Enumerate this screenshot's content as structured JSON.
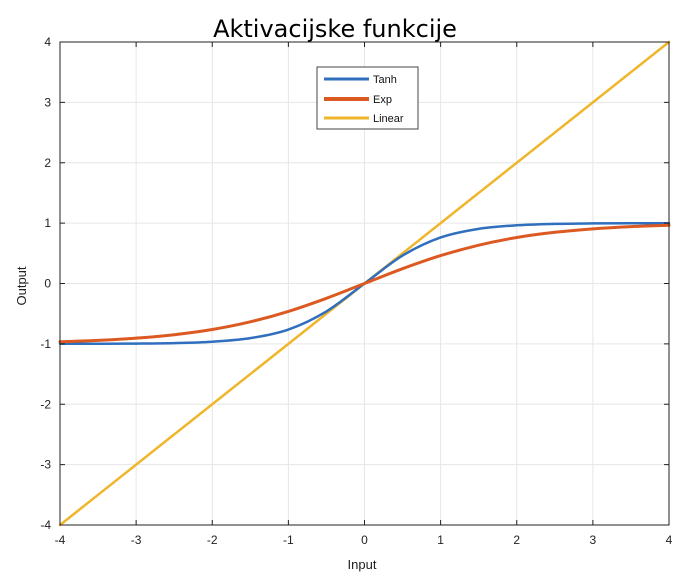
{
  "chart_data": {
    "type": "line",
    "title": "Aktivacijske funkcije",
    "xlabel": "Input",
    "ylabel": "Output",
    "xlim": [
      -4,
      4
    ],
    "ylim": [
      -4,
      4
    ],
    "xticks": [
      -4,
      -3,
      -2,
      -1,
      0,
      1,
      2,
      3,
      4
    ],
    "yticks": [
      -4,
      -3,
      -2,
      -1,
      0,
      1,
      2,
      3,
      4
    ],
    "xtick_labels": [
      "-4",
      "-3",
      "-2",
      "-1",
      "0",
      "1",
      "2",
      "3",
      "4"
    ],
    "ytick_labels": [
      "-4",
      "-3",
      "-2",
      "-1",
      "0",
      "1",
      "2",
      "3",
      "4"
    ],
    "grid": true,
    "legend_position": "top-center",
    "x": [
      -4,
      -3.5,
      -3,
      -2.5,
      -2,
      -1.5,
      -1,
      -0.5,
      0,
      0.5,
      1,
      1.5,
      2,
      2.5,
      3,
      3.5,
      4
    ],
    "series": [
      {
        "name": "Tanh",
        "color": "#2f6fbd",
        "values": [
          -0.999,
          -0.998,
          -0.995,
          -0.987,
          -0.964,
          -0.905,
          -0.762,
          -0.462,
          0,
          0.462,
          0.762,
          0.905,
          0.964,
          0.987,
          0.995,
          0.998,
          0.999
        ]
      },
      {
        "name": "Exp",
        "color": "#dc5a21",
        "values": [
          -0.964,
          -0.942,
          -0.905,
          -0.848,
          -0.762,
          -0.635,
          -0.462,
          -0.245,
          0,
          0.245,
          0.462,
          0.635,
          0.762,
          0.848,
          0.905,
          0.942,
          0.964
        ]
      },
      {
        "name": "Linear",
        "color": "#efb62b",
        "values": [
          -4,
          -3.5,
          -3,
          -2.5,
          -2,
          -1.5,
          -1,
          -0.5,
          0,
          0.5,
          1,
          1.5,
          2,
          2.5,
          3,
          3.5,
          4
        ]
      }
    ]
  }
}
